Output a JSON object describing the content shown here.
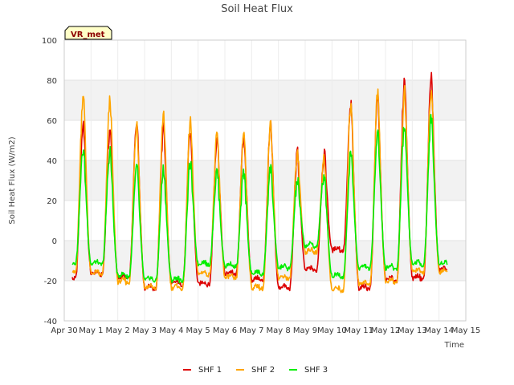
{
  "chart_data": {
    "type": "line",
    "title": "Soil Heat Flux",
    "xlabel": "Time",
    "ylabel": "Soil Heat Flux (W/m2)",
    "ylim": [
      -40,
      100
    ],
    "yticks": [
      -40,
      -20,
      0,
      20,
      40,
      60,
      80,
      100
    ],
    "xlim": [
      0,
      15
    ],
    "xticks": [
      {
        "value": 0,
        "label": "Apr 30"
      },
      {
        "value": 1,
        "label": "May 1"
      },
      {
        "value": 2,
        "label": "May 2"
      },
      {
        "value": 3,
        "label": "May 3"
      },
      {
        "value": 4,
        "label": "May 4"
      },
      {
        "value": 5,
        "label": "May 5"
      },
      {
        "value": 6,
        "label": "May 6"
      },
      {
        "value": 7,
        "label": "May 7"
      },
      {
        "value": 8,
        "label": "May 8"
      },
      {
        "value": 9,
        "label": "May 9"
      },
      {
        "value": 10,
        "label": "May 10"
      },
      {
        "value": 11,
        "label": "May 11"
      },
      {
        "value": 12,
        "label": "May 12"
      },
      {
        "value": 13,
        "label": "May 13"
      },
      {
        "value": 14,
        "label": "May 14"
      },
      {
        "value": 15,
        "label": "May 15"
      }
    ],
    "grid": true,
    "legend_position": "bottom",
    "annotation": "VR_met",
    "day_start": 0.3,
    "day_count": 14,
    "series": [
      {
        "name": "SHF 1",
        "color": "#dd0000",
        "peaks": [
          59,
          56,
          61,
          57,
          54,
          53,
          53,
          57,
          44,
          44,
          68,
          72,
          81,
          82
        ],
        "troughs": [
          -19,
          -17,
          -19,
          -24,
          -22,
          -22,
          -17,
          -20,
          -24,
          -15,
          -5,
          -24,
          -20,
          -19,
          -15,
          -14
        ]
      },
      {
        "name": "SHF 2",
        "color": "#ffa500",
        "peaks": [
          74,
          71,
          60,
          64,
          60,
          53,
          55,
          58,
          45,
          41,
          70,
          75,
          74,
          76
        ],
        "troughs": [
          -16,
          -17,
          -21,
          -24,
          -24,
          -17,
          -19,
          -24,
          -19,
          -6,
          -25,
          -22,
          -21,
          -16,
          -16,
          -14
        ]
      },
      {
        "name": "SHF 3",
        "color": "#00ee00",
        "peaks": [
          46,
          45,
          37,
          36,
          39,
          35,
          34,
          37,
          30,
          33,
          44,
          55,
          58,
          62
        ],
        "troughs": [
          -11,
          -12,
          -18,
          -20,
          -20,
          -12,
          -13,
          -17,
          -14,
          -3,
          -18,
          -14,
          -14,
          -12,
          -12,
          -8
        ]
      }
    ]
  }
}
